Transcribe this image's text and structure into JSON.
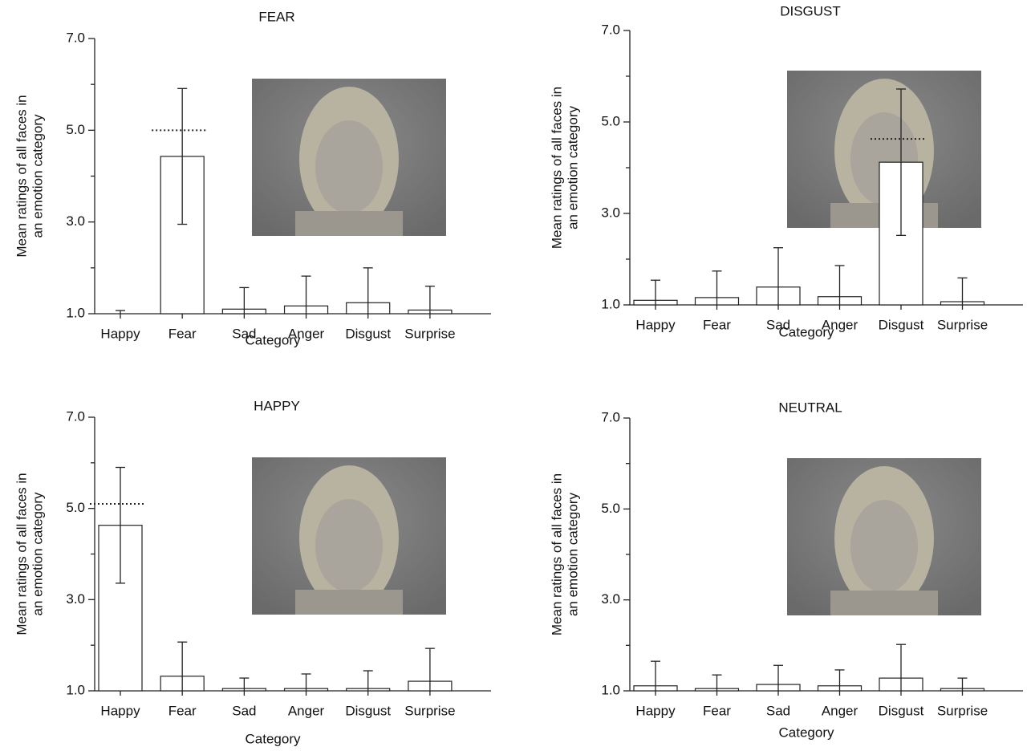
{
  "chart_data": [
    {
      "type": "bar",
      "title": "FEAR",
      "categories": [
        "Happy",
        "Fear",
        "Sad",
        "Anger",
        "Disgust",
        "Surprise"
      ],
      "values": [
        1.0,
        4.43,
        1.1,
        1.17,
        1.24,
        1.08
      ],
      "errors": [
        0.07,
        1.48,
        0.47,
        0.65,
        0.76,
        0.52
      ],
      "reference_line": {
        "category": 1,
        "value": 5.0
      },
      "ylim": [
        1,
        7
      ],
      "yticks": [
        {
          "value": 1,
          "label": "1.0"
        },
        {
          "value": 3,
          "label": "3.0"
        },
        {
          "value": 5,
          "label": "5.0"
        },
        {
          "value": 7,
          "label": "7.0"
        }
      ],
      "yminor_ticks": [
        2,
        4,
        6
      ],
      "xlabel": "Category",
      "ylabel": [
        "Mean ratings of all faces in",
        "an emotion category"
      ],
      "color": "#ffffff"
    },
    {
      "type": "bar",
      "title": "DISGUST",
      "categories": [
        "Happy",
        "Fear",
        "Sad",
        "Anger",
        "Disgust",
        "Surprise"
      ],
      "values": [
        1.1,
        1.16,
        1.39,
        1.18,
        4.12,
        1.07
      ],
      "errors": [
        0.44,
        0.58,
        0.86,
        0.68,
        1.6,
        0.52
      ],
      "reference_line": {
        "category": 4,
        "value": 4.63
      },
      "ylim": [
        1,
        7
      ],
      "yticks": [
        {
          "value": 1,
          "label": "1.0"
        },
        {
          "value": 3,
          "label": "3.0"
        },
        {
          "value": 5,
          "label": "5.0"
        },
        {
          "value": 7,
          "label": "7.0"
        }
      ],
      "yminor_ticks": [
        2,
        4,
        6
      ],
      "xlabel": "Category",
      "ylabel": [
        "Mean ratings of all faces in",
        "an emotion category"
      ],
      "color": "#ffffff"
    },
    {
      "type": "bar",
      "title": "HAPPY",
      "categories": [
        "Happy",
        "Fear",
        "Sad",
        "Anger",
        "Disgust",
        "Surprise"
      ],
      "values": [
        4.63,
        1.32,
        1.05,
        1.05,
        1.05,
        1.21
      ],
      "errors": [
        1.27,
        0.75,
        0.23,
        0.32,
        0.39,
        0.72
      ],
      "reference_line": {
        "category": 0,
        "value": 5.1
      },
      "ylim": [
        1,
        7
      ],
      "yticks": [
        {
          "value": 1,
          "label": "1.0"
        },
        {
          "value": 3,
          "label": "3.0"
        },
        {
          "value": 5,
          "label": "5.0"
        },
        {
          "value": 7,
          "label": "7.0"
        }
      ],
      "yminor_ticks": [
        2,
        4,
        6
      ],
      "xlabel": "Category",
      "ylabel": [
        "Mean ratings of all faces in",
        "an emotion category"
      ],
      "color": "#ffffff"
    },
    {
      "type": "bar",
      "title": "NEUTRAL",
      "categories": [
        "Happy",
        "Fear",
        "Sad",
        "Anger",
        "Disgust",
        "Surprise"
      ],
      "values": [
        1.11,
        1.05,
        1.14,
        1.11,
        1.28,
        1.05
      ],
      "errors": [
        0.54,
        0.3,
        0.42,
        0.35,
        0.74,
        0.23
      ],
      "ylim": [
        1,
        7
      ],
      "yticks": [
        {
          "value": 1,
          "label": "1.0"
        },
        {
          "value": 3,
          "label": "3.0"
        },
        {
          "value": 5,
          "label": "5.0"
        },
        {
          "value": 7,
          "label": "7.0"
        }
      ],
      "yminor_ticks": [
        2,
        4,
        6
      ],
      "xlabel": "Category",
      "ylabel": [
        "Mean ratings of all faces in",
        "an emotion category"
      ],
      "color": "#ffffff"
    }
  ]
}
